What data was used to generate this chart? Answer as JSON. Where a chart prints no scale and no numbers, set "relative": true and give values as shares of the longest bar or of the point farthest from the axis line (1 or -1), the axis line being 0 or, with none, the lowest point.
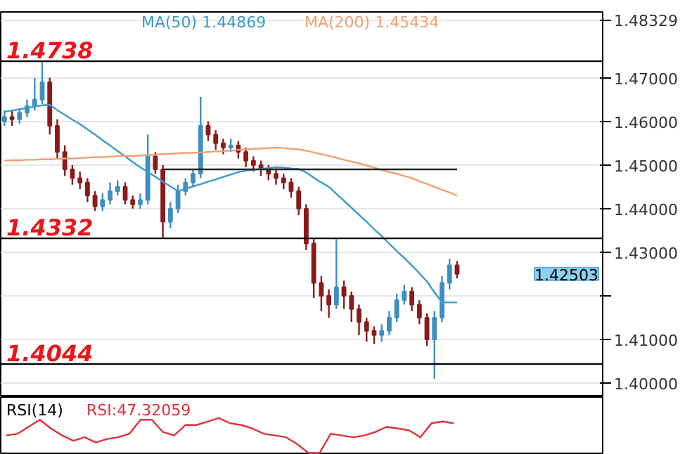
{
  "chart_data": [
    {
      "type": "candlestick",
      "categories": [
        null,
        null,
        null,
        null,
        null,
        null,
        null,
        null,
        null,
        null,
        null,
        null,
        null,
        null,
        null,
        null,
        null,
        null,
        null,
        null,
        null,
        null,
        null,
        null,
        null,
        null,
        null,
        null,
        null,
        null,
        null,
        null,
        null,
        null,
        null,
        null,
        null,
        null,
        null,
        null,
        null,
        null,
        null,
        null,
        null,
        null,
        null,
        null,
        null,
        null,
        null,
        null,
        null,
        null,
        null,
        null,
        null,
        null,
        null,
        null,
        null
      ],
      "ohlc": [
        [
          1.46,
          1.4625,
          1.459,
          1.461
        ],
        [
          1.461,
          1.4625,
          1.459,
          1.4605
        ],
        [
          1.4605,
          1.463,
          1.4595,
          1.462
        ],
        [
          1.462,
          1.465,
          1.461,
          1.4635
        ],
        [
          1.4635,
          1.47,
          1.4625,
          1.465
        ],
        [
          1.465,
          1.4738,
          1.464,
          1.469
        ],
        [
          1.469,
          1.47,
          1.457,
          1.459
        ],
        [
          1.459,
          1.4605,
          1.4515,
          1.453
        ],
        [
          1.453,
          1.4545,
          1.4475,
          1.449
        ],
        [
          1.449,
          1.45,
          1.4455,
          1.447
        ],
        [
          1.447,
          1.4485,
          1.4445,
          1.446
        ],
        [
          1.446,
          1.447,
          1.4415,
          1.443
        ],
        [
          1.443,
          1.444,
          1.4395,
          1.4405
        ],
        [
          1.4405,
          1.4435,
          1.4395,
          1.442
        ],
        [
          1.442,
          1.446,
          1.441,
          1.444
        ],
        [
          1.444,
          1.4465,
          1.443,
          1.445
        ],
        [
          1.445,
          1.446,
          1.441,
          1.442
        ],
        [
          1.442,
          1.443,
          1.44,
          1.441
        ],
        [
          1.441,
          1.4435,
          1.44,
          1.442
        ],
        [
          1.442,
          1.457,
          1.441,
          1.452
        ],
        [
          1.452,
          1.453,
          1.448,
          1.449
        ],
        [
          1.449,
          1.45,
          1.4332,
          1.437
        ],
        [
          1.437,
          1.4415,
          1.4355,
          1.44
        ],
        [
          1.44,
          1.4455,
          1.439,
          1.444
        ],
        [
          1.444,
          1.447,
          1.443,
          1.446
        ],
        [
          1.446,
          1.449,
          1.445,
          1.448
        ],
        [
          1.448,
          1.4656,
          1.447,
          1.459
        ],
        [
          1.459,
          1.46,
          1.4555,
          1.457
        ],
        [
          1.457,
          1.458,
          1.4535,
          1.455
        ],
        [
          1.455,
          1.456,
          1.4525,
          1.454
        ],
        [
          1.454,
          1.456,
          1.453,
          1.4545
        ],
        [
          1.4545,
          1.4555,
          1.4515,
          1.453
        ],
        [
          1.453,
          1.454,
          1.4495,
          1.451
        ],
        [
          1.451,
          1.452,
          1.4485,
          1.45
        ],
        [
          1.45,
          1.451,
          1.4475,
          1.449
        ],
        [
          1.449,
          1.45,
          1.4465,
          1.448
        ],
        [
          1.448,
          1.449,
          1.4455,
          1.447
        ],
        [
          1.447,
          1.448,
          1.4445,
          1.446
        ],
        [
          1.446,
          1.447,
          1.4425,
          1.444
        ],
        [
          1.444,
          1.445,
          1.4385,
          1.44
        ],
        [
          1.44,
          1.441,
          1.4305,
          1.432
        ],
        [
          1.432,
          1.433,
          1.4195,
          1.423
        ],
        [
          1.423,
          1.4245,
          1.4165,
          1.42
        ],
        [
          1.42,
          1.4215,
          1.415,
          1.418
        ],
        [
          1.418,
          1.433,
          1.417,
          1.422
        ],
        [
          1.422,
          1.4235,
          1.417,
          1.42
        ],
        [
          1.42,
          1.421,
          1.414,
          1.417
        ],
        [
          1.417,
          1.418,
          1.411,
          1.414
        ],
        [
          1.414,
          1.415,
          1.4095,
          1.412
        ],
        [
          1.412,
          1.413,
          1.409,
          1.411
        ],
        [
          1.411,
          1.4135,
          1.4095,
          1.412
        ],
        [
          1.412,
          1.4165,
          1.411,
          1.415
        ],
        [
          1.415,
          1.4205,
          1.414,
          1.419
        ],
        [
          1.419,
          1.4225,
          1.418,
          1.421
        ],
        [
          1.421,
          1.422,
          1.4165,
          1.418
        ],
        [
          1.418,
          1.419,
          1.4135,
          1.415
        ],
        [
          1.415,
          1.416,
          1.4085,
          1.41
        ],
        [
          1.41,
          1.4165,
          1.401,
          1.415
        ],
        [
          1.415,
          1.4245,
          1.414,
          1.423
        ],
        [
          1.423,
          1.4285,
          1.4215,
          1.427
        ],
        [
          1.427,
          1.428,
          1.424,
          1.42503
        ]
      ],
      "colors": [
        "#3d8fc1",
        "#8b1a1a",
        "#3d8fc1",
        "#3d8fc1",
        "#3d8fc1",
        "#3d8fc1",
        "#8b1a1a",
        "#8b1a1a",
        "#8b1a1a",
        "#8b1a1a",
        "#8b1a1a",
        "#8b1a1a",
        "#8b1a1a",
        "#3d8fc1",
        "#3d8fc1",
        "#3d8fc1",
        "#8b1a1a",
        "#8b1a1a",
        "#3d8fc1",
        "#3d8fc1",
        "#8b1a1a",
        "#8b1a1a",
        "#3d8fc1",
        "#3d8fc1",
        "#3d8fc1",
        "#3d8fc1",
        "#3d8fc1",
        "#8b1a1a",
        "#8b1a1a",
        "#8b1a1a",
        "#3d8fc1",
        "#8b1a1a",
        "#8b1a1a",
        "#8b1a1a",
        "#8b1a1a",
        "#8b1a1a",
        "#8b1a1a",
        "#8b1a1a",
        "#8b1a1a",
        "#8b1a1a",
        "#8b1a1a",
        "#8b1a1a",
        "#8b1a1a",
        "#8b1a1a",
        "#3d8fc1",
        "#8b1a1a",
        "#8b1a1a",
        "#8b1a1a",
        "#8b1a1a",
        "#8b1a1a",
        "#3d8fc1",
        "#3d8fc1",
        "#3d8fc1",
        "#3d8fc1",
        "#8b1a1a",
        "#8b1a1a",
        "#8b1a1a",
        "#3d8fc1",
        "#3d8fc1",
        "#3d8fc1",
        "#8b1a1a"
      ],
      "series": [
        {
          "type": "line",
          "color": "#3a9bc8",
          "values": [
            1.4622,
            1.4625,
            1.4628,
            1.4631,
            1.4634,
            1.4637,
            1.4638,
            1.4626,
            1.4615,
            1.4604,
            1.4594,
            1.4582,
            1.457,
            1.4557,
            1.4545,
            1.4532,
            1.452,
            1.4507,
            1.4495,
            1.4484,
            1.4473,
            1.4462,
            1.4451,
            1.444,
            1.4445,
            1.4451,
            1.4456,
            1.4462,
            1.4467,
            1.4473,
            1.4478,
            1.4484,
            1.4487,
            1.4489,
            1.4491,
            1.4493,
            1.4495,
            1.4494,
            1.4492,
            1.4491,
            1.4483,
            1.4471,
            1.446,
            1.445,
            1.4434,
            1.4418,
            1.4402,
            1.4386,
            1.437,
            1.4353,
            1.4337,
            1.432,
            1.4303,
            1.4287,
            1.427,
            1.4252,
            1.4233,
            1.4208,
            1.4185,
            1.4185,
            1.4185
          ]
        },
        {
          "type": "line",
          "color": "#f0a070",
          "values": [
            1.451,
            1.4511,
            1.4511,
            1.4512,
            1.4512,
            1.4513,
            1.4513,
            1.4514,
            1.4515,
            1.4515,
            1.4516,
            1.4517,
            1.4518,
            1.4518,
            1.4519,
            1.452,
            1.4521,
            1.4521,
            1.4522,
            1.4523,
            1.4524,
            1.4525,
            1.4526,
            1.4527,
            1.4528,
            1.4528,
            1.4529,
            1.453,
            1.4531,
            1.4532,
            1.4533,
            1.4535,
            1.4536,
            1.4537,
            1.4538,
            1.4539,
            1.454,
            1.4539,
            1.4537,
            1.4536,
            1.4533,
            1.4529,
            1.4525,
            1.4521,
            1.4517,
            1.4512,
            1.4508,
            1.4504,
            1.4499,
            1.4494,
            1.4489,
            1.4484,
            1.448,
            1.4475,
            1.447,
            1.4463,
            1.4457,
            1.445,
            1.4443,
            1.4437,
            1.443
          ]
        },
        {
          "type": "line",
          "color": "#222222",
          "values": [
            null,
            null,
            null,
            null,
            null,
            null,
            null,
            null,
            null,
            null,
            null,
            null,
            null,
            null,
            null,
            null,
            null,
            null,
            null,
            null,
            null,
            1.449,
            1.449,
            1.449,
            1.449,
            1.449,
            1.449,
            1.449,
            1.449,
            1.449,
            1.449,
            1.449,
            1.449,
            1.449,
            1.449,
            1.449,
            1.449,
            1.449,
            1.449,
            1.449,
            1.449,
            1.449,
            1.449,
            1.449,
            1.449,
            1.449,
            1.449,
            1.449,
            1.449,
            1.449,
            1.449,
            1.449,
            1.449,
            1.449,
            1.449,
            1.449,
            1.449,
            1.449,
            1.449,
            1.449,
            1.449
          ]
        }
      ],
      "ylim": [
        1.3968,
        1.4851
      ],
      "yticks": [
        {
          "value": 1.4,
          "label": "1.40000"
        },
        {
          "value": 1.41,
          "label": "1.41000"
        },
        {
          "value": 1.42,
          "label": null
        },
        {
          "value": 1.43,
          "label": "1.43000"
        },
        {
          "value": 1.44,
          "label": "1.44000"
        },
        {
          "value": 1.45,
          "label": "1.45000"
        },
        {
          "value": 1.46,
          "label": "1.46000"
        },
        {
          "value": 1.47,
          "label": "1.47000"
        },
        {
          "value": 1.48329,
          "label": "1.48329"
        }
      ],
      "grid": "y",
      "tick_labels": "y",
      "ref_lines": [
        {
          "axis": "y",
          "value": 1.4738,
          "label": "1.4738",
          "color": "#000000"
        },
        {
          "axis": "y",
          "value": 1.4332,
          "label": "1.4332",
          "color": "#000000"
        },
        {
          "axis": "y",
          "value": 1.4044,
          "label": "1.4044",
          "color": "#000000"
        }
      ],
      "annotations": [
        "MA(50) 1.44869",
        "MA(200) 1.45434",
        "1.42503"
      ]
    },
    {
      "type": "line",
      "relative": true,
      "title": "RSI(14)",
      "categories": [
        null,
        null,
        null,
        null,
        null,
        null,
        null,
        null,
        null,
        null,
        null,
        null,
        null,
        null,
        null,
        null,
        null,
        null,
        null,
        null,
        null,
        null,
        null,
        null,
        null,
        null,
        null,
        null,
        null,
        null,
        null,
        null,
        null,
        null,
        null,
        null,
        null,
        null,
        null,
        null,
        null
      ],
      "series": [
        {
          "color": "#e0303a",
          "values": [
            0.5,
            0.55,
            0.75,
            0.95,
            0.7,
            0.5,
            0.35,
            0.45,
            0.3,
            0.4,
            0.45,
            0.55,
            0.95,
            0.95,
            0.6,
            0.5,
            0.8,
            0.8,
            0.9,
            1,
            0.85,
            0.8,
            0.7,
            0.55,
            0.5,
            0.45,
            0.25,
            0,
            0,
            0.55,
            0.5,
            0.45,
            0.5,
            0.6,
            0.75,
            0.7,
            0.65,
            0.45,
            0.85,
            0.9,
            0.85
          ]
        }
      ],
      "annotations": [
        "RSI:47.32059"
      ]
    }
  ]
}
